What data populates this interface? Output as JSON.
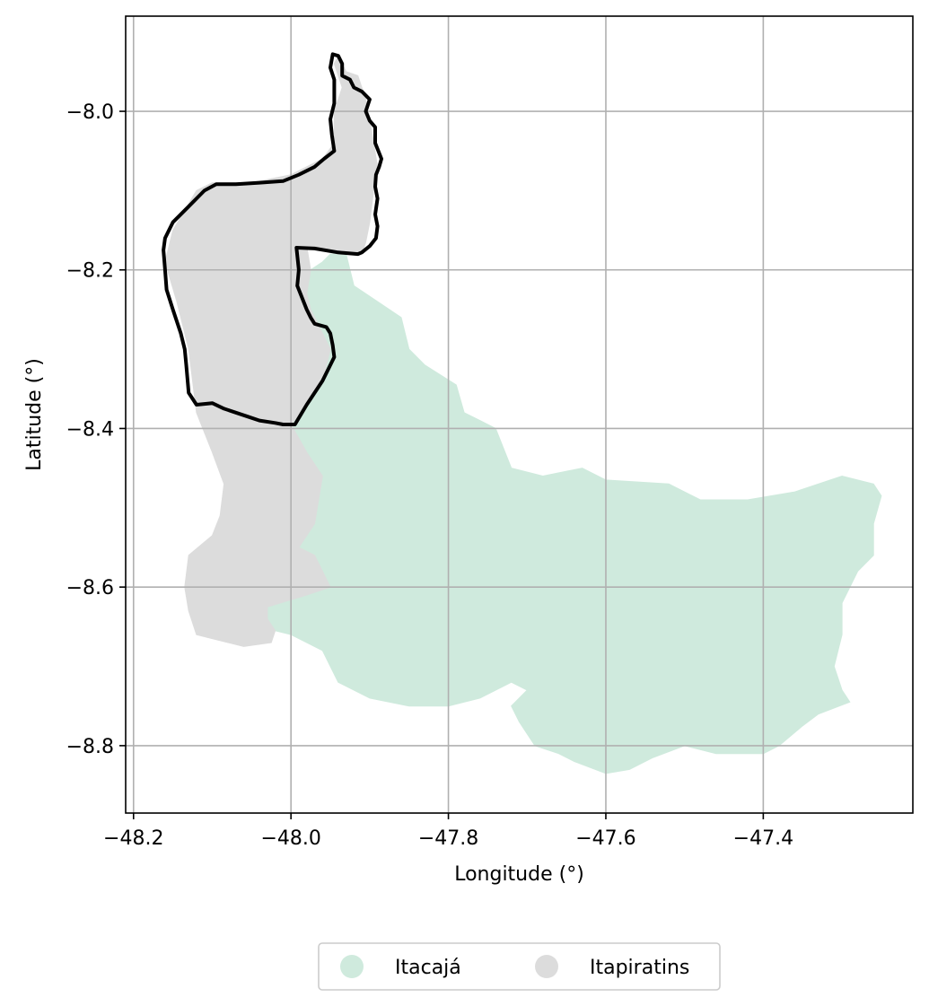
{
  "chart_data": {
    "type": "map",
    "xlabel": "Longitude (°)",
    "ylabel": "Latitude (°)",
    "xlim": [
      -48.21,
      -47.21
    ],
    "ylim": [
      -8.885,
      -7.88
    ],
    "x_ticks": [
      -48.2,
      -48.0,
      -47.8,
      -47.6,
      -47.4
    ],
    "x_tick_labels": [
      "−48.2",
      "−48.0",
      "−47.8",
      "−47.6",
      "−47.4"
    ],
    "y_ticks": [
      -8.0,
      -8.2,
      -8.4,
      -8.6,
      -8.8
    ],
    "y_tick_labels": [
      "−8.0",
      "−8.2",
      "−8.4",
      "−8.6",
      "−8.8"
    ],
    "grid": true,
    "legend_placement": "bottom-center",
    "regions": [
      {
        "name": "Itacajá",
        "color": "#cfeadd",
        "polygon": [
          [
            -47.95,
            -8.18
          ],
          [
            -47.93,
            -8.18
          ],
          [
            -47.92,
            -8.22
          ],
          [
            -47.89,
            -8.24
          ],
          [
            -47.86,
            -8.26
          ],
          [
            -47.85,
            -8.3
          ],
          [
            -47.83,
            -8.32
          ],
          [
            -47.79,
            -8.345
          ],
          [
            -47.78,
            -8.38
          ],
          [
            -47.76,
            -8.39
          ],
          [
            -47.74,
            -8.4
          ],
          [
            -47.72,
            -8.45
          ],
          [
            -47.68,
            -8.46
          ],
          [
            -47.63,
            -8.45
          ],
          [
            -47.6,
            -8.465
          ],
          [
            -47.52,
            -8.47
          ],
          [
            -47.48,
            -8.49
          ],
          [
            -47.42,
            -8.49
          ],
          [
            -47.36,
            -8.48
          ],
          [
            -47.3,
            -8.46
          ],
          [
            -47.26,
            -8.47
          ],
          [
            -47.25,
            -8.485
          ],
          [
            -47.26,
            -8.52
          ],
          [
            -47.26,
            -8.56
          ],
          [
            -47.28,
            -8.58
          ],
          [
            -47.3,
            -8.62
          ],
          [
            -47.3,
            -8.66
          ],
          [
            -47.31,
            -8.7
          ],
          [
            -47.3,
            -8.73
          ],
          [
            -47.29,
            -8.745
          ],
          [
            -47.33,
            -8.76
          ],
          [
            -47.35,
            -8.775
          ],
          [
            -47.38,
            -8.8
          ],
          [
            -47.4,
            -8.81
          ],
          [
            -47.46,
            -8.81
          ],
          [
            -47.5,
            -8.8
          ],
          [
            -47.54,
            -8.815
          ],
          [
            -47.57,
            -8.83
          ],
          [
            -47.6,
            -8.835
          ],
          [
            -47.64,
            -8.82
          ],
          [
            -47.66,
            -8.81
          ],
          [
            -47.69,
            -8.8
          ],
          [
            -47.71,
            -8.77
          ],
          [
            -47.72,
            -8.75
          ],
          [
            -47.7,
            -8.73
          ],
          [
            -47.72,
            -8.72
          ],
          [
            -47.76,
            -8.74
          ],
          [
            -47.8,
            -8.75
          ],
          [
            -47.85,
            -8.75
          ],
          [
            -47.9,
            -8.74
          ],
          [
            -47.94,
            -8.72
          ],
          [
            -47.96,
            -8.68
          ],
          [
            -47.99,
            -8.665
          ],
          [
            -48.0,
            -8.66
          ],
          [
            -48.02,
            -8.655
          ],
          [
            -48.03,
            -8.64
          ],
          [
            -48.03,
            -8.625
          ],
          [
            -47.98,
            -8.61
          ],
          [
            -47.95,
            -8.6
          ],
          [
            -47.96,
            -8.58
          ],
          [
            -47.97,
            -8.56
          ],
          [
            -47.99,
            -8.55
          ],
          [
            -47.97,
            -8.52
          ],
          [
            -47.96,
            -8.46
          ],
          [
            -47.98,
            -8.43
          ],
          [
            -48.0,
            -8.395
          ],
          [
            -47.98,
            -8.37
          ],
          [
            -47.96,
            -8.34
          ],
          [
            -47.95,
            -8.3
          ],
          [
            -47.96,
            -8.28
          ],
          [
            -47.975,
            -8.25
          ],
          [
            -47.98,
            -8.23
          ],
          [
            -47.975,
            -8.2
          ],
          [
            -47.96,
            -8.19
          ]
        ]
      },
      {
        "name": "Itapiratins",
        "color": "#dcdcdc",
        "polygon": [
          [
            -47.94,
            -7.93
          ],
          [
            -47.93,
            -7.95
          ],
          [
            -47.915,
            -7.955
          ],
          [
            -47.905,
            -7.985
          ],
          [
            -47.9,
            -8.01
          ],
          [
            -47.895,
            -8.04
          ],
          [
            -47.89,
            -8.07
          ],
          [
            -47.895,
            -8.1
          ],
          [
            -47.9,
            -8.14
          ],
          [
            -47.905,
            -8.165
          ],
          [
            -47.91,
            -8.18
          ],
          [
            -47.94,
            -8.18
          ],
          [
            -47.98,
            -8.17
          ],
          [
            -47.975,
            -8.2
          ],
          [
            -47.98,
            -8.23
          ],
          [
            -47.975,
            -8.25
          ],
          [
            -47.96,
            -8.28
          ],
          [
            -47.95,
            -8.3
          ],
          [
            -47.96,
            -8.34
          ],
          [
            -47.98,
            -8.37
          ],
          [
            -48.0,
            -8.395
          ],
          [
            -47.98,
            -8.43
          ],
          [
            -47.96,
            -8.46
          ],
          [
            -47.97,
            -8.52
          ],
          [
            -47.99,
            -8.55
          ],
          [
            -47.97,
            -8.56
          ],
          [
            -47.96,
            -8.58
          ],
          [
            -47.95,
            -8.6
          ],
          [
            -47.98,
            -8.61
          ],
          [
            -48.03,
            -8.625
          ],
          [
            -48.03,
            -8.64
          ],
          [
            -48.02,
            -8.655
          ],
          [
            -48.025,
            -8.67
          ],
          [
            -48.06,
            -8.675
          ],
          [
            -48.08,
            -8.67
          ],
          [
            -48.1,
            -8.665
          ],
          [
            -48.12,
            -8.66
          ],
          [
            -48.13,
            -8.63
          ],
          [
            -48.135,
            -8.6
          ],
          [
            -48.13,
            -8.56
          ],
          [
            -48.1,
            -8.535
          ],
          [
            -48.09,
            -8.51
          ],
          [
            -48.085,
            -8.47
          ],
          [
            -48.1,
            -8.43
          ],
          [
            -48.12,
            -8.38
          ],
          [
            -48.13,
            -8.3
          ],
          [
            -48.145,
            -8.24
          ],
          [
            -48.16,
            -8.19
          ],
          [
            -48.15,
            -8.15
          ],
          [
            -48.12,
            -8.1
          ],
          [
            -48.1,
            -8.09
          ],
          [
            -48.05,
            -8.09
          ],
          [
            -48.0,
            -8.08
          ],
          [
            -47.96,
            -8.06
          ],
          [
            -47.945,
            -8.04
          ],
          [
            -47.945,
            -8.0
          ],
          [
            -47.935,
            -7.97
          ],
          [
            -47.945,
            -7.94
          ]
        ]
      }
    ],
    "highlight_boundary": {
      "color": "#000000",
      "polygon": [
        [
          -47.947,
          -7.928
        ],
        [
          -47.94,
          -7.93
        ],
        [
          -47.935,
          -7.94
        ],
        [
          -47.935,
          -7.955
        ],
        [
          -47.925,
          -7.96
        ],
        [
          -47.92,
          -7.97
        ],
        [
          -47.91,
          -7.975
        ],
        [
          -47.9,
          -7.985
        ],
        [
          -47.905,
          -8.0
        ],
        [
          -47.9,
          -8.012
        ],
        [
          -47.893,
          -8.02
        ],
        [
          -47.893,
          -8.04
        ],
        [
          -47.885,
          -8.06
        ],
        [
          -47.888,
          -8.07
        ],
        [
          -47.892,
          -8.08
        ],
        [
          -47.893,
          -8.095
        ],
        [
          -47.89,
          -8.11
        ],
        [
          -47.893,
          -8.13
        ],
        [
          -47.89,
          -8.145
        ],
        [
          -47.892,
          -8.16
        ],
        [
          -47.9,
          -8.17
        ],
        [
          -47.91,
          -8.178
        ],
        [
          -47.915,
          -8.18
        ],
        [
          -47.94,
          -8.178
        ],
        [
          -47.97,
          -8.173
        ],
        [
          -47.993,
          -8.172
        ],
        [
          -47.99,
          -8.2
        ],
        [
          -47.992,
          -8.22
        ],
        [
          -47.98,
          -8.25
        ],
        [
          -47.975,
          -8.26
        ],
        [
          -47.97,
          -8.268
        ],
        [
          -47.955,
          -8.272
        ],
        [
          -47.95,
          -8.28
        ],
        [
          -47.947,
          -8.295
        ],
        [
          -47.945,
          -8.31
        ],
        [
          -47.96,
          -8.34
        ],
        [
          -47.98,
          -8.37
        ],
        [
          -47.995,
          -8.395
        ],
        [
          -48.01,
          -8.395
        ],
        [
          -48.02,
          -8.393
        ],
        [
          -48.04,
          -8.39
        ],
        [
          -48.055,
          -8.385
        ],
        [
          -48.07,
          -8.38
        ],
        [
          -48.085,
          -8.375
        ],
        [
          -48.1,
          -8.368
        ],
        [
          -48.12,
          -8.37
        ],
        [
          -48.13,
          -8.355
        ],
        [
          -48.133,
          -8.32
        ],
        [
          -48.135,
          -8.3
        ],
        [
          -48.14,
          -8.28
        ],
        [
          -48.15,
          -8.25
        ],
        [
          -48.158,
          -8.225
        ],
        [
          -48.16,
          -8.2
        ],
        [
          -48.162,
          -8.175
        ],
        [
          -48.16,
          -8.16
        ],
        [
          -48.15,
          -8.14
        ],
        [
          -48.13,
          -8.12
        ],
        [
          -48.11,
          -8.1
        ],
        [
          -48.095,
          -8.092
        ],
        [
          -48.07,
          -8.092
        ],
        [
          -48.04,
          -8.09
        ],
        [
          -48.01,
          -8.088
        ],
        [
          -47.99,
          -8.08
        ],
        [
          -47.97,
          -8.07
        ],
        [
          -47.958,
          -8.06
        ],
        [
          -47.945,
          -8.05
        ],
        [
          -47.948,
          -8.03
        ],
        [
          -47.95,
          -8.01
        ],
        [
          -47.945,
          -7.99
        ],
        [
          -47.945,
          -7.96
        ],
        [
          -47.95,
          -7.945
        ]
      ]
    },
    "legend": [
      {
        "label": "Itacajá",
        "color": "#cfeadd"
      },
      {
        "label": "Itapiratins",
        "color": "#dcdcdc"
      }
    ]
  }
}
